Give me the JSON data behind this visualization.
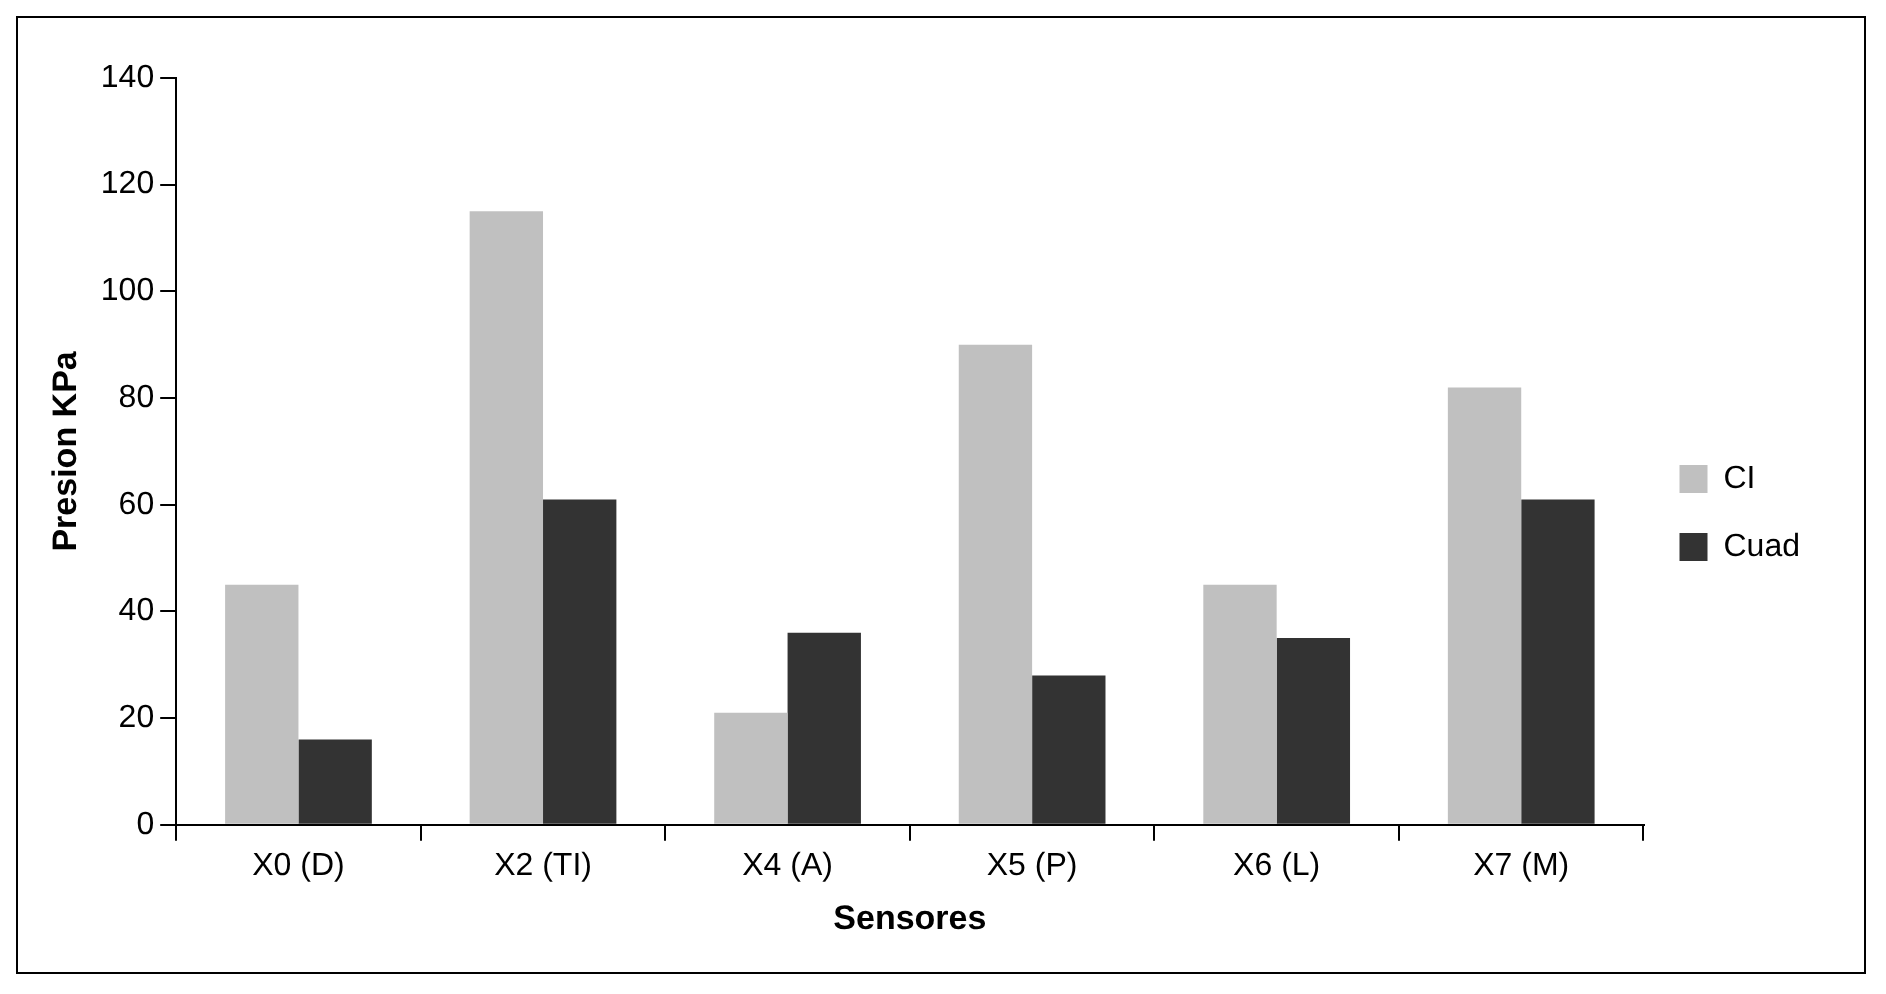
{
  "chart_data": {
    "type": "bar",
    "xlabel": "Sensores",
    "ylabel": "Presion KPa",
    "categories": [
      "X0 (D)",
      "X2 (TI)",
      "X4 (A)",
      "X5 (P)",
      "X6 (L)",
      "X7 (M)"
    ],
    "series": [
      {
        "name": "CI",
        "color": "#c0c0c0",
        "values": [
          45,
          115,
          21,
          90,
          45,
          82
        ]
      },
      {
        "name": "Cuad",
        "color": "#333333",
        "values": [
          16,
          61,
          36,
          28,
          35,
          61
        ]
      }
    ],
    "ylim": [
      0,
      140
    ],
    "yticks": [
      0,
      20,
      40,
      60,
      80,
      100,
      120,
      140
    ],
    "grid": false,
    "legend": "right"
  }
}
